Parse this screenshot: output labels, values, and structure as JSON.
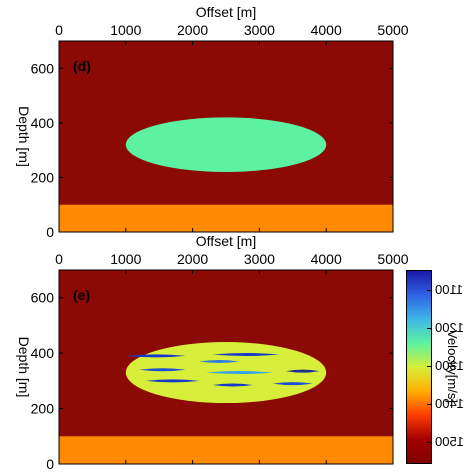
{
  "chart_data": [
    {
      "type": "heatmap",
      "panel_label": "(d)",
      "xlabel": "Offset [m]",
      "ylabel": "Depth [m]",
      "xticks": [
        0,
        1000,
        2000,
        3000,
        4000,
        5000
      ],
      "yticks": [
        0,
        200,
        400,
        600
      ],
      "xlim": [
        0,
        5000
      ],
      "ylim": [
        0,
        700
      ],
      "layers": [
        {
          "name": "background",
          "color": "#8b0a05"
        },
        {
          "name": "bottom-layer",
          "depth_range": [
            0,
            100
          ],
          "color": "#ff8a00"
        },
        {
          "name": "ellipse-body",
          "center_x": 2500,
          "center_y": 320,
          "half_width": 1500,
          "half_height": 100,
          "color": "#5cf2a1"
        }
      ]
    },
    {
      "type": "heatmap",
      "panel_label": "(e)",
      "xlabel": "Offset [m]",
      "ylabel": "Depth [m]",
      "xticks": [
        0,
        1000,
        2000,
        3000,
        4000,
        5000
      ],
      "yticks": [
        0,
        200,
        400,
        600
      ],
      "xlim": [
        0,
        5000
      ],
      "ylim": [
        0,
        700
      ],
      "layers": [
        {
          "name": "background",
          "color": "#8b0a05"
        },
        {
          "name": "bottom-layer",
          "depth_range": [
            0,
            100
          ],
          "color": "#ff8a00"
        },
        {
          "name": "ellipse-body",
          "center_x": 2500,
          "center_y": 330,
          "half_width": 1500,
          "half_height": 110,
          "color": "#d7ee3a"
        }
      ],
      "lenses": [
        {
          "x": [
            1000,
            1900
          ],
          "y": 390,
          "color": "#1739c9"
        },
        {
          "x": [
            2300,
            3300
          ],
          "y": 395,
          "color": "#1739c9"
        },
        {
          "x": [
            2100,
            2700
          ],
          "y": 370,
          "color": "#2f7be0"
        },
        {
          "x": [
            1200,
            1900
          ],
          "y": 340,
          "color": "#1d4fd6"
        },
        {
          "x": [
            2200,
            3200
          ],
          "y": 330,
          "color": "#35a3e6"
        },
        {
          "x": [
            3400,
            3900
          ],
          "y": 335,
          "color": "#1d2e8e"
        },
        {
          "x": [
            1300,
            2100
          ],
          "y": 300,
          "color": "#1739c9"
        },
        {
          "x": [
            2300,
            2900
          ],
          "y": 285,
          "color": "#1739c9"
        },
        {
          "x": [
            3200,
            3800
          ],
          "y": 290,
          "color": "#1d4fd6"
        }
      ]
    }
  ],
  "colorbar": {
    "label": "Velocity[m/s]",
    "ticks": [
      1100,
      1200,
      1300,
      1400,
      1500
    ],
    "range": [
      1050,
      1560
    ],
    "colors": [
      "#1a1aa8",
      "#2f62e3",
      "#3fb6e8",
      "#5cf2a1",
      "#d7ee3a",
      "#ffb000",
      "#ff3c00",
      "#a30000",
      "#800000"
    ]
  }
}
